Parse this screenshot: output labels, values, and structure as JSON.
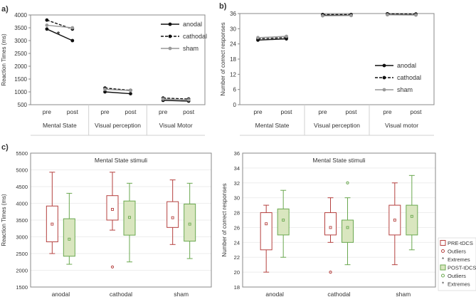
{
  "panel_labels": {
    "a": "a)",
    "b": "b)",
    "c": "c)"
  },
  "colors": {
    "anodal": "#111111",
    "cathodal": "#111111",
    "sham": "#999999",
    "pre": "#b5413f",
    "post": "#6aa84f",
    "post_fill": "#d9e6bf",
    "grid": "#d0d0d0",
    "axis": "#888888"
  },
  "chart_data": [
    {
      "id": "a",
      "type": "line",
      "ylabel": "Reaction Times (ms)",
      "yticks": [
        500,
        1000,
        1500,
        2000,
        2500,
        3000,
        3500,
        4000
      ],
      "ylim": [
        500,
        4000
      ],
      "groups": [
        "Mental State",
        "Visual perception",
        "Visual Motor"
      ],
      "x_in_group": [
        "pre",
        "post"
      ],
      "significance": "*",
      "series": [
        {
          "name": "anodal",
          "style": "solid",
          "values": [
            [
              3450,
              3000
            ],
            [
              1000,
              930
            ],
            [
              670,
              640
            ]
          ]
        },
        {
          "name": "cathodal",
          "style": "dashed",
          "values": [
            [
              3800,
              3450
            ],
            [
              1150,
              1060
            ],
            [
              760,
              720
            ]
          ]
        },
        {
          "name": "sham",
          "style": "solid",
          "values": [
            [
              3600,
              3500
            ],
            [
              1100,
              1050
            ],
            [
              720,
              690
            ]
          ]
        }
      ],
      "legend": "top-right"
    },
    {
      "id": "b",
      "type": "line",
      "ylabel": "Number of correct responses",
      "yticks": [
        0,
        6,
        12,
        18,
        24,
        30,
        36
      ],
      "ylim": [
        0,
        36
      ],
      "groups": [
        "Mental State",
        "Visual perception",
        "Visual motor"
      ],
      "x_in_group": [
        "pre",
        "post"
      ],
      "series": [
        {
          "name": "anodal",
          "style": "solid",
          "values": [
            [
              25.5,
              26
            ],
            [
              35.3,
              35.3
            ],
            [
              35.6,
              35.5
            ]
          ]
        },
        {
          "name": "cathodal",
          "style": "dashed",
          "values": [
            [
              26,
              26.5
            ],
            [
              35.6,
              35.6
            ],
            [
              35.9,
              35.8
            ]
          ]
        },
        {
          "name": "sham",
          "style": "solid",
          "values": [
            [
              26.5,
              27
            ],
            [
              35.1,
              35.2
            ],
            [
              35.5,
              35.4
            ]
          ]
        }
      ],
      "legend": "bottom-right"
    },
    {
      "id": "c1",
      "type": "box",
      "title": "Mental State stimuli",
      "ylabel": "Reaction Times (ms)",
      "yticks": [
        1500,
        2000,
        2500,
        3000,
        3500,
        4000,
        4500,
        5000,
        5500
      ],
      "ylim": [
        1500,
        5500
      ],
      "categories": [
        "anodal",
        "cathodal",
        "sham"
      ],
      "boxes": [
        {
          "group": "anodal",
          "phase": "pre",
          "min": 2500,
          "q1": 2850,
          "median": 3380,
          "q3": 3920,
          "max": 4930,
          "outliers": []
        },
        {
          "group": "anodal",
          "phase": "post",
          "min": 2180,
          "q1": 2420,
          "median": 2930,
          "q3": 3540,
          "max": 4300,
          "outliers": []
        },
        {
          "group": "cathodal",
          "phase": "pre",
          "min": 3200,
          "q1": 3500,
          "median": 3820,
          "q3": 4230,
          "max": 4930,
          "outliers": [
            2100
          ]
        },
        {
          "group": "cathodal",
          "phase": "post",
          "min": 2250,
          "q1": 3050,
          "median": 3580,
          "q3": 4070,
          "max": 4600,
          "outliers": []
        },
        {
          "group": "sham",
          "phase": "pre",
          "min": 2770,
          "q1": 3280,
          "median": 3570,
          "q3": 4050,
          "max": 4700,
          "outliers": []
        },
        {
          "group": "sham",
          "phase": "post",
          "min": 2350,
          "q1": 2870,
          "median": 3380,
          "q3": 3980,
          "max": 4600,
          "outliers": []
        }
      ]
    },
    {
      "id": "c2",
      "type": "box",
      "title": "Mental State stimuli",
      "ylabel": "Number of correct responses",
      "yticks": [
        18,
        20,
        22,
        24,
        26,
        28,
        30,
        32,
        34,
        36
      ],
      "ylim": [
        18,
        36
      ],
      "categories": [
        "anodal",
        "cathodal",
        "sham"
      ],
      "boxes": [
        {
          "group": "anodal",
          "phase": "pre",
          "min": 20,
          "q1": 23,
          "median": 26.5,
          "q3": 28,
          "max": 29,
          "outliers": []
        },
        {
          "group": "anodal",
          "phase": "post",
          "min": 22,
          "q1": 25,
          "median": 27,
          "q3": 28.5,
          "max": 31,
          "outliers": []
        },
        {
          "group": "cathodal",
          "phase": "pre",
          "min": 24,
          "q1": 25,
          "median": 26,
          "q3": 28,
          "max": 30,
          "outliers": [
            20
          ]
        },
        {
          "group": "cathodal",
          "phase": "post",
          "min": 21,
          "q1": 24,
          "median": 26,
          "q3": 27,
          "max": 30,
          "outliers": [
            32
          ]
        },
        {
          "group": "sham",
          "phase": "pre",
          "min": 21,
          "q1": 25,
          "median": 27,
          "q3": 29,
          "max": 32,
          "outliers": []
        },
        {
          "group": "sham",
          "phase": "post",
          "min": 23,
          "q1": 25,
          "median": 27.5,
          "q3": 29,
          "max": 33,
          "outliers": []
        }
      ],
      "legend": {
        "pre_box": "PRE-tDCS",
        "pre_outliers": "Outliers",
        "pre_extremes": "Extremes",
        "post_box": "POST-tDCS",
        "post_outliers": "Outliers",
        "post_extremes": "Extremes"
      }
    }
  ]
}
